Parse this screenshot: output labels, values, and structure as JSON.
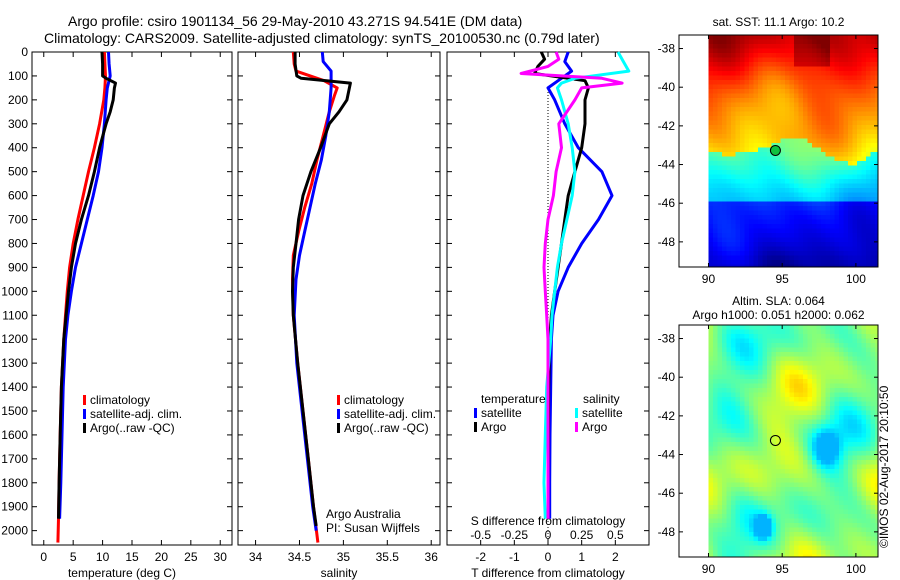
{
  "title": {
    "line1": "Argo profile: csiro 1901134_56 29-May-2010 43.271S 94.541E (DM data)",
    "line2": "Climatology: CARS2009. Satellite-adjusted climatology: synTS_20100530.nc (0.79d later)"
  },
  "colors": {
    "climatology": "#ff0000",
    "satellite": "#0000ff",
    "argo": "#000000",
    "sal_satellite": "#00ffff",
    "sal_argo": "#ff00ff"
  },
  "chart_data": [
    {
      "type": "line",
      "name": "temperature-profile",
      "xlabel": "temperature (deg C)",
      "ylabel": "",
      "xlim": [
        -2,
        32
      ],
      "ylim": [
        2060,
        0
      ],
      "xticks": [
        "0",
        "5",
        "10",
        "15",
        "20",
        "25",
        "30"
      ],
      "xtick_values": [
        0,
        5,
        10,
        15,
        20,
        25,
        30
      ],
      "yticks": [
        "0",
        "100",
        "200",
        "300",
        "400",
        "500",
        "600",
        "700",
        "800",
        "900",
        "1000",
        "1100",
        "1200",
        "1300",
        "1400",
        "1500",
        "1600",
        "1700",
        "1800",
        "1900",
        "2000"
      ],
      "ytick_values": [
        0,
        100,
        200,
        300,
        400,
        500,
        600,
        700,
        800,
        900,
        1000,
        1100,
        1200,
        1300,
        1400,
        1500,
        1600,
        1700,
        1800,
        1900,
        2000
      ],
      "legend": [
        "climatology",
        "satellite-adj. clim.",
        "Argo(..raw -QC)"
      ],
      "legend_position": "lower-center",
      "series": [
        {
          "name": "climatology",
          "depth": [
            0,
            50,
            100,
            150,
            200,
            300,
            400,
            500,
            600,
            700,
            800,
            900,
            1000,
            1100,
            1200,
            1400,
            1600,
            1800,
            1950,
            2050
          ],
          "values": [
            10.3,
            10.4,
            10.5,
            10.4,
            10.2,
            9.5,
            8.6,
            7.6,
            6.7,
            5.8,
            5.0,
            4.4,
            4.0,
            3.7,
            3.4,
            3.0,
            2.8,
            2.6,
            2.5,
            2.4
          ]
        },
        {
          "name": "satellite-adj. clim.",
          "depth": [
            0,
            50,
            100,
            150,
            200,
            300,
            400,
            500,
            600,
            700,
            800,
            900,
            1000,
            1100,
            1200,
            1400,
            1600,
            1800,
            1950
          ],
          "values": [
            11.0,
            11.1,
            11.3,
            10.8,
            10.6,
            10.3,
            9.9,
            9.3,
            8.4,
            7.4,
            6.4,
            5.4,
            4.7,
            4.1,
            3.7,
            3.3,
            3.1,
            2.9,
            2.7
          ]
        },
        {
          "name": "Argo(..raw -QC)",
          "depth": [
            0,
            50,
            100,
            110,
            130,
            150,
            200,
            250,
            300,
            400,
            500,
            600,
            700,
            800,
            900,
            1000,
            1100,
            1200,
            1400,
            1600,
            1800,
            1950
          ],
          "values": [
            9.9,
            10.0,
            10.0,
            10.6,
            12.2,
            12.0,
            11.8,
            11.3,
            10.6,
            9.5,
            8.6,
            7.6,
            6.4,
            5.4,
            4.7,
            4.2,
            3.8,
            3.4,
            3.0,
            2.8,
            2.6,
            2.5
          ]
        }
      ]
    },
    {
      "type": "line",
      "name": "salinity-profile",
      "xlabel": "salinity",
      "xlim": [
        33.8,
        36.1
      ],
      "ylim": [
        2060,
        0
      ],
      "xticks": [
        "34",
        "34.5",
        "35",
        "35.5",
        "36"
      ],
      "xtick_values": [
        34,
        34.5,
        35,
        35.5,
        36
      ],
      "legend": [
        "climatology",
        "satellite-adj. clim.",
        "Argo(..raw -QC)"
      ],
      "legend_position": "lower-right",
      "annotation": [
        "Argo Australia",
        "PI: Susan Wijffels"
      ],
      "series": [
        {
          "name": "climatology",
          "depth": [
            0,
            50,
            80,
            120,
            150,
            180,
            250,
            350,
            450,
            550,
            650,
            750,
            850,
            950,
            1100,
            1300,
            1500,
            1700,
            1900,
            2050
          ],
          "values": [
            34.43,
            34.44,
            34.46,
            34.78,
            34.93,
            34.9,
            34.84,
            34.77,
            34.7,
            34.64,
            34.56,
            34.49,
            34.43,
            34.42,
            34.43,
            34.48,
            34.54,
            34.6,
            34.66,
            34.71
          ]
        },
        {
          "name": "satellite-adj. clim.",
          "depth": [
            0,
            40,
            80,
            150,
            250,
            350,
            450,
            550,
            650,
            750,
            850,
            950,
            1100,
            1300,
            1500,
            1700,
            1900,
            2000
          ],
          "values": [
            34.76,
            34.77,
            34.86,
            34.86,
            34.84,
            34.8,
            34.75,
            34.68,
            34.62,
            34.56,
            34.5,
            34.46,
            34.44,
            34.47,
            34.53,
            34.59,
            34.65,
            34.69
          ]
        },
        {
          "name": "Argo(..raw -QC)",
          "depth": [
            0,
            50,
            100,
            110,
            130,
            200,
            250,
            300,
            400,
            500,
            600,
            700,
            800,
            900,
            1000,
            1100,
            1300,
            1500,
            1700,
            1900,
            1980
          ],
          "values": [
            34.45,
            34.45,
            34.47,
            34.52,
            35.08,
            35.04,
            34.95,
            34.84,
            34.74,
            34.63,
            34.54,
            34.49,
            34.46,
            34.43,
            34.42,
            34.43,
            34.48,
            34.54,
            34.6,
            34.66,
            34.69
          ]
        }
      ]
    },
    {
      "type": "line",
      "name": "difference-profile",
      "xlabel": "T difference from climatology",
      "xlabel2": "S difference from climatology",
      "xlim": [
        -3,
        3
      ],
      "ylim": [
        2060,
        0
      ],
      "xticks": [
        "-2",
        "-1",
        "0",
        "1",
        "2"
      ],
      "xtick_values": [
        -2,
        -1,
        0,
        1,
        2
      ],
      "xticks_s": [
        "-0.5",
        "-0.25",
        "0",
        "0.25",
        "0.5"
      ],
      "xtick_values_s": [
        -0.5,
        -0.25,
        0,
        0.25,
        0.5
      ],
      "legend": {
        "temperature_header": "temperature",
        "salinity_header": "salinity",
        "items": [
          "satellite",
          "Argo",
          "satellite",
          "Argo"
        ]
      },
      "series": [
        {
          "name": "temperature satellite",
          "depth": [
            0,
            40,
            80,
            120,
            150,
            200,
            300,
            400,
            500,
            600,
            700,
            800,
            900,
            1000,
            1100,
            1200,
            1400,
            1600,
            1800,
            1950
          ],
          "values": [
            0.6,
            0.5,
            0.7,
            0.3,
            0.0,
            0.2,
            0.5,
            0.9,
            1.6,
            1.9,
            1.5,
            1.0,
            0.6,
            0.3,
            0.15,
            0.1,
            0.08,
            0.06,
            0.05,
            0.05
          ]
        },
        {
          "name": "temperature Argo",
          "depth": [
            0,
            30,
            60,
            90,
            120,
            150,
            200,
            300,
            400,
            500,
            600,
            700,
            800,
            900,
            1000,
            1100,
            1200,
            1400,
            1600,
            1800,
            1950
          ],
          "values": [
            -0.2,
            -0.1,
            -0.3,
            -0.4,
            1.1,
            1.2,
            1.1,
            1.1,
            1.0,
            0.8,
            0.6,
            0.5,
            0.4,
            0.3,
            0.2,
            0.1,
            0.05,
            0.02,
            0.01,
            0.0,
            0.0
          ]
        },
        {
          "name": "salinity satellite",
          "depth": [
            0,
            40,
            80,
            110,
            130,
            150,
            200,
            300,
            400,
            500,
            600,
            700,
            800,
            900,
            1000,
            1100,
            1200,
            1400,
            1600,
            1800,
            1950
          ],
          "values": [
            0.52,
            0.56,
            0.6,
            0.2,
            0.1,
            0.07,
            0.1,
            0.15,
            0.18,
            0.2,
            0.18,
            0.14,
            0.1,
            0.07,
            0.05,
            0.03,
            0.02,
            -0.01,
            -0.02,
            -0.03,
            -0.02
          ]
        },
        {
          "name": "salinity Argo",
          "depth": [
            0,
            30,
            60,
            90,
            110,
            130,
            150,
            200,
            300,
            400,
            500,
            600,
            700,
            800,
            900,
            1000,
            1100,
            1200,
            1400,
            1600,
            1800,
            1950
          ],
          "values": [
            0.06,
            0.08,
            0.0,
            -0.2,
            0.4,
            0.55,
            0.25,
            0.2,
            0.08,
            0.1,
            0.06,
            0.04,
            0.0,
            -0.02,
            -0.03,
            -0.02,
            -0.01,
            0.0,
            0.0,
            0.0,
            0.0,
            0.0
          ]
        }
      ]
    },
    {
      "type": "heatmap",
      "name": "sst-map",
      "title": "sat. SST: 11.1 Argo: 10.2",
      "xlim": [
        88,
        101.5
      ],
      "ylim": [
        -49.3,
        -37.3
      ],
      "xticks": [
        "90",
        "95",
        "100"
      ],
      "xtick_values": [
        90,
        95,
        100
      ],
      "yticks": [
        "-38",
        "-40",
        "-42",
        "-44",
        "-46",
        "-48"
      ],
      "ytick_values": [
        -38,
        -40,
        -42,
        -44,
        -46,
        -48
      ],
      "marker": {
        "lon": 94.541,
        "lat": -43.271
      }
    },
    {
      "type": "heatmap",
      "name": "sla-map",
      "title": "Altim. SLA: 0.064",
      "subtitle": "Argo h1000: 0.051 h2000: 0.062",
      "xlim": [
        88,
        101.5
      ],
      "ylim": [
        -49.3,
        -37.3
      ],
      "xticks": [
        "90",
        "95",
        "100"
      ],
      "xtick_values": [
        90,
        95,
        100
      ],
      "yticks": [
        "-38",
        "-40",
        "-42",
        "-44",
        "-46",
        "-48"
      ],
      "ytick_values": [
        -38,
        -40,
        -42,
        -44,
        -46,
        -48
      ],
      "marker": {
        "lon": 94.541,
        "lat": -43.271
      }
    }
  ],
  "credit": "©IMOS 02-Aug-2017 20:10:50"
}
